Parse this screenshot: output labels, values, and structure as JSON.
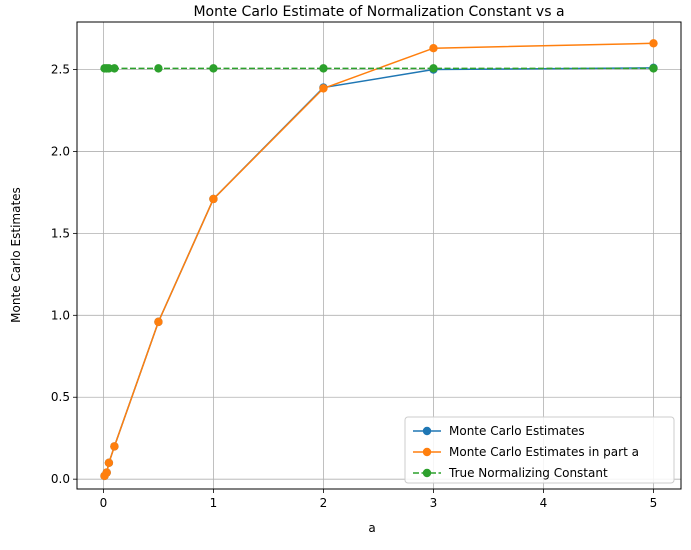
{
  "chart_data": {
    "type": "line",
    "title": "Monte Carlo Estimate of Normalization Constant vs a",
    "xlabel": "a",
    "ylabel": "Monte Carlo Estimates",
    "xlim": [
      -0.24,
      5.25
    ],
    "ylim": [
      -0.06,
      2.79
    ],
    "grid": true,
    "legend_position": "lower-right",
    "x_ticks": [
      {
        "value": 0,
        "label": "0"
      },
      {
        "value": 1,
        "label": "1"
      },
      {
        "value": 2,
        "label": "2"
      },
      {
        "value": 3,
        "label": "3"
      },
      {
        "value": 4,
        "label": "4"
      },
      {
        "value": 5,
        "label": "5"
      }
    ],
    "y_ticks": [
      {
        "value": 0.0,
        "label": "0.0"
      },
      {
        "value": 0.5,
        "label": "0.5"
      },
      {
        "value": 1.0,
        "label": "1.0"
      },
      {
        "value": 1.5,
        "label": "1.5"
      },
      {
        "value": 2.0,
        "label": "2.0"
      },
      {
        "value": 2.5,
        "label": "2.5"
      }
    ],
    "series": [
      {
        "name": "Monte Carlo Estimates",
        "color": "#1f77b4",
        "linestyle": "solid",
        "x": [
          0.01,
          0.03,
          0.05,
          0.1,
          0.5,
          1,
          2,
          3,
          5
        ],
        "values": [
          0.02,
          0.04,
          0.1,
          0.2,
          0.96,
          1.71,
          2.39,
          2.5,
          2.51
        ]
      },
      {
        "name": "Monte Carlo Estimates in part a",
        "color": "#ff7f0e",
        "linestyle": "solid",
        "x": [
          0.01,
          0.03,
          0.05,
          0.1,
          0.5,
          1,
          2,
          3,
          5
        ],
        "values": [
          0.02,
          0.04,
          0.1,
          0.2,
          0.96,
          1.71,
          2.385,
          2.63,
          2.66
        ]
      },
      {
        "name": "True Normalizing Constant",
        "color": "#2ca02c",
        "linestyle": "dashed",
        "x": [
          0.01,
          0.03,
          0.05,
          0.1,
          0.5,
          1,
          2,
          3,
          5
        ],
        "values": [
          2.507,
          2.507,
          2.507,
          2.507,
          2.507,
          2.507,
          2.507,
          2.507,
          2.507
        ]
      }
    ]
  }
}
